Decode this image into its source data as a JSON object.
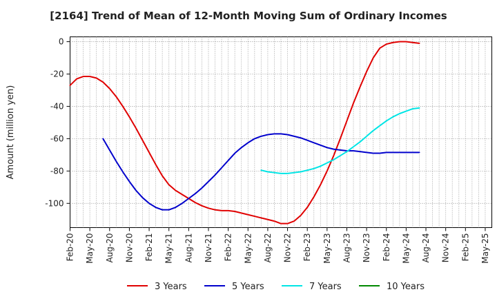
{
  "chart_data": {
    "type": "line",
    "title": "[2164]  Trend of Mean of 12-Month Moving Sum of Ordinary Incomes",
    "xlabel": "",
    "ylabel": "Amount (million yen)",
    "ylim": [
      -115,
      3
    ],
    "yticks": [
      0,
      -20,
      -40,
      -60,
      -80,
      -100
    ],
    "grid": true,
    "legend_position": "bottom",
    "x_tick_labels": [
      "Feb-20",
      "May-20",
      "Aug-20",
      "Nov-20",
      "Feb-21",
      "May-21",
      "Aug-21",
      "Nov-21",
      "Feb-22",
      "May-22",
      "Aug-22",
      "Nov-22",
      "Feb-23",
      "May-23",
      "Aug-23",
      "Nov-23",
      "Feb-24",
      "May-24",
      "Aug-24",
      "Nov-24",
      "Feb-25",
      "May-25"
    ],
    "series": [
      {
        "name": "3 Years",
        "color": "#e00000",
        "start_month_index": 0,
        "values": [
          -27,
          -23,
          -21.5,
          -21.5,
          -22.5,
          -25,
          -29,
          -34,
          -40,
          -46.5,
          -53.5,
          -61,
          -68.5,
          -76,
          -83,
          -88.5,
          -92,
          -94.5,
          -97,
          -99.5,
          -101.5,
          -103,
          -104,
          -104.5,
          -104.5,
          -105,
          -106,
          -107,
          -108,
          -109,
          -110,
          -111,
          -112.5,
          -112.5,
          -111,
          -107.5,
          -102.5,
          -96,
          -88.5,
          -80,
          -70.5,
          -60,
          -49,
          -38,
          -28,
          -18.5,
          -10,
          -4,
          -1.5,
          -0.5,
          0,
          0,
          -0.5,
          -1
        ]
      },
      {
        "name": "5 Years",
        "color": "#0000cc",
        "start_month_index": 5,
        "values": [
          -60,
          -67,
          -74,
          -80.5,
          -86.5,
          -92,
          -96.5,
          -100,
          -102.5,
          -104,
          -104,
          -102.5,
          -100,
          -97,
          -94,
          -90.5,
          -86.5,
          -82.5,
          -78,
          -73.5,
          -69,
          -65.5,
          -62.5,
          -60,
          -58.5,
          -57.5,
          -57,
          -57,
          -57.5,
          -58.5,
          -59.5,
          -61,
          -62.5,
          -64,
          -65.5,
          -66.5,
          -67,
          -67.5,
          -67.5,
          -68,
          -68.5,
          -69,
          -69,
          -68.5,
          -68.5,
          -68.5,
          -68.5,
          -68.5,
          -68.5
        ]
      },
      {
        "name": "7 Years",
        "color": "#00e5e5",
        "start_month_index": 29,
        "values": [
          -79.5,
          -80.5,
          -81,
          -81.5,
          -81.5,
          -81,
          -80.5,
          -79.5,
          -78.5,
          -77,
          -75,
          -73,
          -70.5,
          -68,
          -65,
          -62,
          -58.5,
          -55,
          -52,
          -49,
          -46.5,
          -44.5,
          -43,
          -41.5,
          -41
        ]
      },
      {
        "name": "10 Years",
        "color": "#008800",
        "start_month_index": 0,
        "values": []
      }
    ]
  }
}
